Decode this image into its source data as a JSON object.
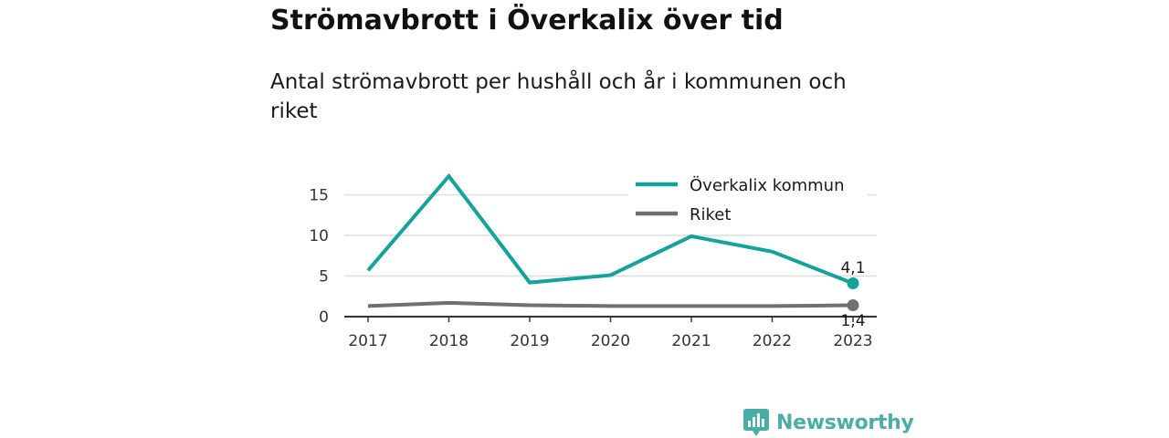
{
  "title": "Strömavbrott i Överkalix över tid",
  "subtitle": "Antal strömavbrott per hushåll och år i kommunen och riket",
  "brand": {
    "name": "Newsworthy",
    "icon": "newsworthy-logo-icon",
    "color": "#4aaea6"
  },
  "chart_data": {
    "type": "line",
    "title": "",
    "xlabel": "",
    "ylabel": "",
    "x": [
      "2017",
      "2018",
      "2019",
      "2020",
      "2021",
      "2022",
      "2023"
    ],
    "ylim": [
      0,
      17.5
    ],
    "yticks": [
      "0",
      "5",
      "10",
      "15"
    ],
    "grid": true,
    "legend": "top-right",
    "series": [
      {
        "name": "Överkalix kommun",
        "color": "#13a39a",
        "values": [
          5.7,
          17.3,
          4.2,
          5.1,
          9.9,
          8.0,
          4.1
        ],
        "end_label": "4,1"
      },
      {
        "name": "Riket",
        "color": "#707070",
        "values": [
          1.3,
          1.7,
          1.4,
          1.3,
          1.3,
          1.3,
          1.4
        ],
        "end_label": "1,4"
      }
    ]
  }
}
